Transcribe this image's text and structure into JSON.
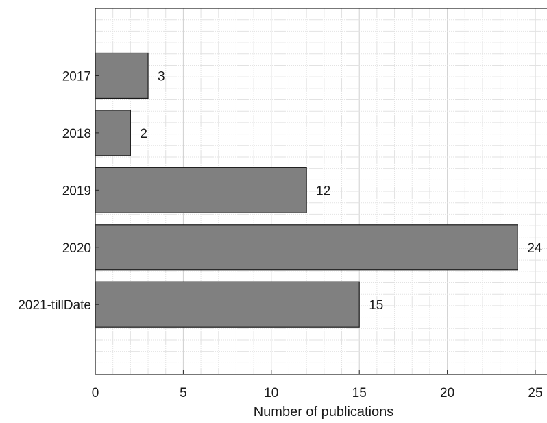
{
  "chart_data": {
    "type": "bar",
    "orientation": "horizontal",
    "categories": [
      "2017",
      "2018",
      "2019",
      "2020",
      "2021-tillDate"
    ],
    "values": [
      3,
      2,
      12,
      24,
      15
    ],
    "data_labels": [
      "3",
      "2",
      "12",
      "24",
      "15"
    ],
    "title": "",
    "xlabel": "Number of publications",
    "ylabel": "",
    "xlim": [
      0,
      26
    ],
    "x_ticks": [
      0,
      5,
      10,
      15,
      20,
      25
    ],
    "x_tick_labels": [
      "0",
      "5",
      "10",
      "15",
      "20",
      "25"
    ],
    "grid": true,
    "minor_grid": true,
    "legend": "none",
    "bar_color": "#808080",
    "bar_edge_color": "#1a1a1a"
  }
}
